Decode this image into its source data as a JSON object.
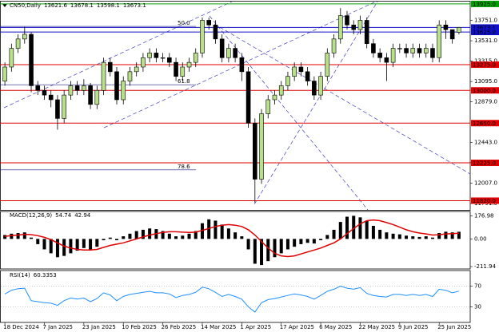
{
  "chart_data": [
    {
      "type": "candlestick",
      "title": "CN50,Daily",
      "categories": [
        "18 Dec 2024",
        null,
        null,
        null,
        null,
        null,
        "7 Jan 2025",
        null,
        null,
        null,
        null,
        null,
        "23 Jan 2025",
        null,
        null,
        null,
        null,
        null,
        "10 Feb 2025",
        null,
        null,
        null,
        null,
        null,
        "26 Feb 2025",
        null,
        null,
        null,
        null,
        null,
        "14 Mar 2025",
        null,
        null,
        null,
        null,
        null,
        "1 Apr 2025",
        null,
        null,
        null,
        null,
        null,
        "17 Apr 2025",
        null,
        null,
        null,
        null,
        null,
        "6 May 2025",
        null,
        null,
        null,
        null,
        null,
        "22 May 2025",
        null,
        null,
        null,
        null,
        null,
        "9 Jun 2025",
        null,
        null,
        null,
        null,
        null,
        "25 Jun 2025",
        null,
        null,
        null
      ],
      "open": [
        13100,
        13250,
        13450,
        13550,
        13600,
        13050,
        13000,
        12950,
        12900,
        12700,
        12950,
        13050,
        13000,
        13050,
        12850,
        13000,
        13300,
        13200,
        12900,
        13100,
        13200,
        13250,
        13350,
        13400,
        13350,
        13350,
        13300,
        13150,
        13250,
        13300,
        13400,
        13750,
        13700,
        13550,
        13350,
        13450,
        13350,
        13200,
        12650,
        12050,
        12750,
        12900,
        12950,
        13050,
        13150,
        13250,
        13200,
        13100,
        12950,
        13150,
        13400,
        13550,
        13800,
        13700,
        13650,
        13750,
        13500,
        13400,
        13350,
        13300,
        13450,
        13450,
        13400,
        13450,
        13400,
        13450,
        13350,
        13700,
        13650,
        13621.6
      ],
      "high": [
        13300,
        13500,
        13600,
        13680,
        13620,
        13100,
        13050,
        13000,
        12950,
        13000,
        13100,
        13100,
        13120,
        13080,
        13050,
        13350,
        13350,
        13250,
        13150,
        13250,
        13300,
        13400,
        13450,
        13450,
        13400,
        13400,
        13350,
        13300,
        13350,
        13450,
        13780,
        13780,
        13750,
        13600,
        13500,
        13500,
        13400,
        13250,
        12700,
        12800,
        12950,
        13000,
        13100,
        13200,
        13300,
        13300,
        13250,
        13150,
        13200,
        13450,
        13600,
        13880,
        13850,
        13750,
        13800,
        13780,
        13550,
        13450,
        13400,
        13500,
        13500,
        13500,
        13500,
        13500,
        13500,
        13500,
        13750,
        13750,
        13650,
        13678.1
      ],
      "low": [
        13050,
        13200,
        13400,
        13500,
        12980,
        12950,
        12900,
        12820,
        12580,
        12650,
        12900,
        12950,
        12950,
        12800,
        12800,
        12950,
        13150,
        12850,
        12850,
        13050,
        13150,
        13200,
        13300,
        13300,
        13300,
        13250,
        13100,
        13100,
        13200,
        13250,
        13350,
        13650,
        13500,
        13300,
        13300,
        13300,
        13100,
        12600,
        11800,
        12000,
        12700,
        12850,
        12900,
        13000,
        13100,
        13150,
        13050,
        12900,
        12900,
        13100,
        13350,
        13500,
        13650,
        13600,
        13600,
        13450,
        13350,
        13300,
        13100,
        13250,
        13400,
        13350,
        13350,
        13350,
        13350,
        13300,
        13300,
        13550,
        13500,
        13598.1
      ],
      "close": [
        13250,
        13450,
        13550,
        13600,
        13050,
        13000,
        12950,
        12900,
        12700,
        12950,
        13050,
        13000,
        13050,
        12850,
        13000,
        13300,
        13200,
        12900,
        13100,
        13200,
        13250,
        13350,
        13400,
        13350,
        13350,
        13300,
        13150,
        13250,
        13300,
        13400,
        13750,
        13700,
        13550,
        13350,
        13450,
        13350,
        13200,
        12650,
        12050,
        12750,
        12900,
        12950,
        13050,
        13150,
        13250,
        13200,
        13100,
        12950,
        13150,
        13400,
        13550,
        13800,
        13700,
        13650,
        13750,
        13500,
        13400,
        13350,
        13300,
        13450,
        13450,
        13400,
        13450,
        13400,
        13450,
        13350,
        13700,
        13650,
        13550,
        13673.1
      ],
      "bull_color": "#b8e08a",
      "bear_color": "#000000",
      "ylim": [
        11730,
        13950
      ],
      "yticks": [
        {
          "value": 13751,
          "label": "13751.0"
        },
        {
          "value": 13531,
          "label": "13531.0"
        },
        {
          "value": 13315,
          "label": "13315.0"
        },
        {
          "value": 13095,
          "label": "13095.0"
        },
        {
          "value": 12879,
          "label": "12879.0"
        },
        {
          "value": 12443,
          "label": "12443.0"
        },
        {
          "value": 12227,
          "label": "12227.0"
        },
        {
          "value": 12007,
          "label": "12007.0"
        },
        {
          "value": 11791,
          "label": "11791.0"
        }
      ],
      "levels": [
        {
          "value": 13925,
          "label": "13925.0",
          "color": "#00a000"
        },
        {
          "value": 13673.1,
          "label": "13673.1",
          "color": "#1010c8"
        },
        {
          "value": 13625,
          "label": "13625.0",
          "color": "#1010c8"
        },
        {
          "value": 13275,
          "label": "13275.0",
          "color": "#e00000"
        },
        {
          "value": 13000,
          "label": "13000.0",
          "color": "#e00000"
        },
        {
          "value": 12650,
          "label": "12650.0",
          "color": "#e00000"
        },
        {
          "value": 12225,
          "label": "12225.0",
          "color": "#e00000"
        },
        {
          "value": 11820,
          "label": "11820.0",
          "color": "#e00000"
        }
      ],
      "fibonacci": [
        {
          "label": "50.0",
          "price": 13685
        },
        {
          "label": "61.8",
          "price": 13060
        },
        {
          "label": "78.6",
          "price": 12150
        }
      ]
    },
    {
      "type": "macd",
      "title": "MACD(12,26,9)",
      "histogram": {
        "color": "#000000",
        "values": [
          30,
          40,
          45,
          50,
          10,
          -40,
          -80,
          -110,
          -140,
          -130,
          -110,
          -90,
          -70,
          -80,
          -60,
          -10,
          10,
          -10,
          20,
          40,
          60,
          70,
          80,
          75,
          60,
          40,
          20,
          25,
          40,
          60,
          120,
          150,
          140,
          110,
          80,
          50,
          20,
          -80,
          -190,
          -200,
          -170,
          -140,
          -110,
          -80,
          -60,
          -40,
          -30,
          -35,
          -10,
          30,
          70,
          130,
          170,
          177,
          165,
          140,
          100,
          70,
          50,
          40,
          35,
          25,
          20,
          15,
          20,
          10,
          45,
          55,
          50,
          54.74
        ]
      },
      "signal": {
        "color": "#e00000",
        "values": [
          20,
          25,
          30,
          35,
          33,
          25,
          12,
          -5,
          -30,
          -55,
          -70,
          -80,
          -85,
          -85,
          -80,
          -65,
          -50,
          -40,
          -30,
          -15,
          0,
          15,
          30,
          40,
          50,
          55,
          55,
          52,
          50,
          52,
          65,
          80,
          95,
          105,
          110,
          105,
          95,
          70,
          30,
          -20,
          -70,
          -110,
          -130,
          -135,
          -130,
          -115,
          -100,
          -85,
          -70,
          -50,
          -30,
          0,
          40,
          80,
          115,
          140,
          145,
          140,
          125,
          110,
          90,
          70,
          55,
          45,
          38,
          30,
          32,
          38,
          40,
          42.94
        ]
      },
      "ylim": [
        -230,
        210
      ],
      "yticks": [
        {
          "value": 176.98,
          "label": "176.98"
        },
        {
          "value": 0,
          "label": "0.00"
        },
        {
          "value": -211.94,
          "label": "-211.94"
        }
      ]
    },
    {
      "type": "line",
      "title": "RSI(14)",
      "color": "#1e90ff",
      "values": [
        55,
        62,
        65,
        66,
        42,
        40,
        38,
        37,
        33,
        42,
        47,
        45,
        47,
        40,
        46,
        57,
        53,
        42,
        50,
        54,
        56,
        58,
        60,
        57,
        57,
        55,
        48,
        52,
        54,
        58,
        68,
        65,
        58,
        50,
        54,
        50,
        45,
        30,
        20,
        38,
        44,
        46,
        49,
        52,
        55,
        53,
        50,
        45,
        52,
        60,
        64,
        70,
        66,
        64,
        67,
        56,
        52,
        50,
        49,
        54,
        54,
        52,
        54,
        52,
        54,
        50,
        64,
        62,
        57,
        60.3353
      ],
      "ylim": [
        0,
        100
      ],
      "yticks": [
        70,
        30
      ]
    }
  ]
}
